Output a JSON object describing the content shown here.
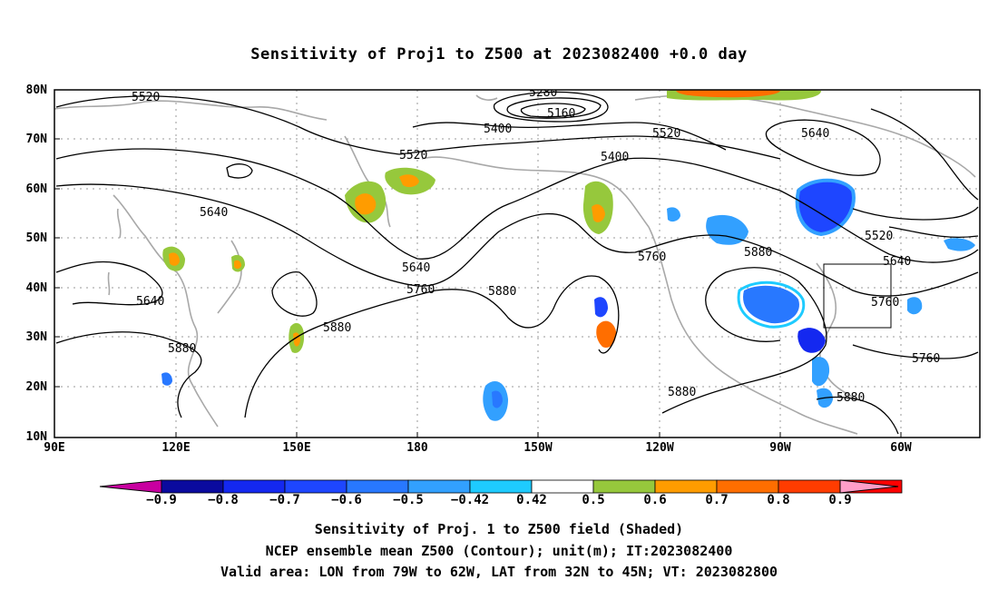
{
  "title": "Sensitivity of Proj1 to Z500 at 2023082400 +0.0 day",
  "lat_labels": [
    "80N",
    "70N",
    "60N",
    "50N",
    "40N",
    "30N",
    "20N",
    "10N"
  ],
  "lon_labels": [
    "90E",
    "120E",
    "150E",
    "180",
    "150W",
    "120W",
    "90W",
    "60W"
  ],
  "map_extent": {
    "lon_range": [
      "90E",
      "50W"
    ],
    "lat_range": [
      "10N",
      "80N"
    ]
  },
  "contour_labels": [
    "5520",
    "5280",
    "5160",
    "5400",
    "5520",
    "5640",
    "5520",
    "5400",
    "5640",
    "5520",
    "5640",
    "5640",
    "5760",
    "5880",
    "5760",
    "5880",
    "5640",
    "5760",
    "5880",
    "5880",
    "5760",
    "5880",
    "5880",
    "5880"
  ],
  "valid_area": {
    "lon": "79W to 62W",
    "lat": "32N to 45N"
  },
  "colorbar": {
    "labels": [
      "−0.9",
      "−0.8",
      "−0.7",
      "−0.6",
      "−0.5",
      "−0.42",
      "0.42",
      "0.5",
      "0.6",
      "0.7",
      "0.8",
      "0.9"
    ],
    "colors": {
      "under": "#c800a0",
      "bins": [
        "#0a0a9e",
        "#1428f0",
        "#1e46ff",
        "#2878ff",
        "#32a0ff",
        "#1ecbff",
        "#ffffff",
        "#96c83c",
        "#ff9c00",
        "#ff6e00",
        "#ff3c00",
        "#ff0000"
      ],
      "over": "#ff9ec8"
    }
  },
  "caption": {
    "line1": "Sensitivity of Proj. 1 to Z500 field (Shaded)",
    "line2": "NCEP ensemble mean Z500 (Contour); unit(m); IT:2023082400",
    "line3": "Valid area: LON from 79W to 62W, LAT from 32N to 45N; VT: 2023082800"
  }
}
